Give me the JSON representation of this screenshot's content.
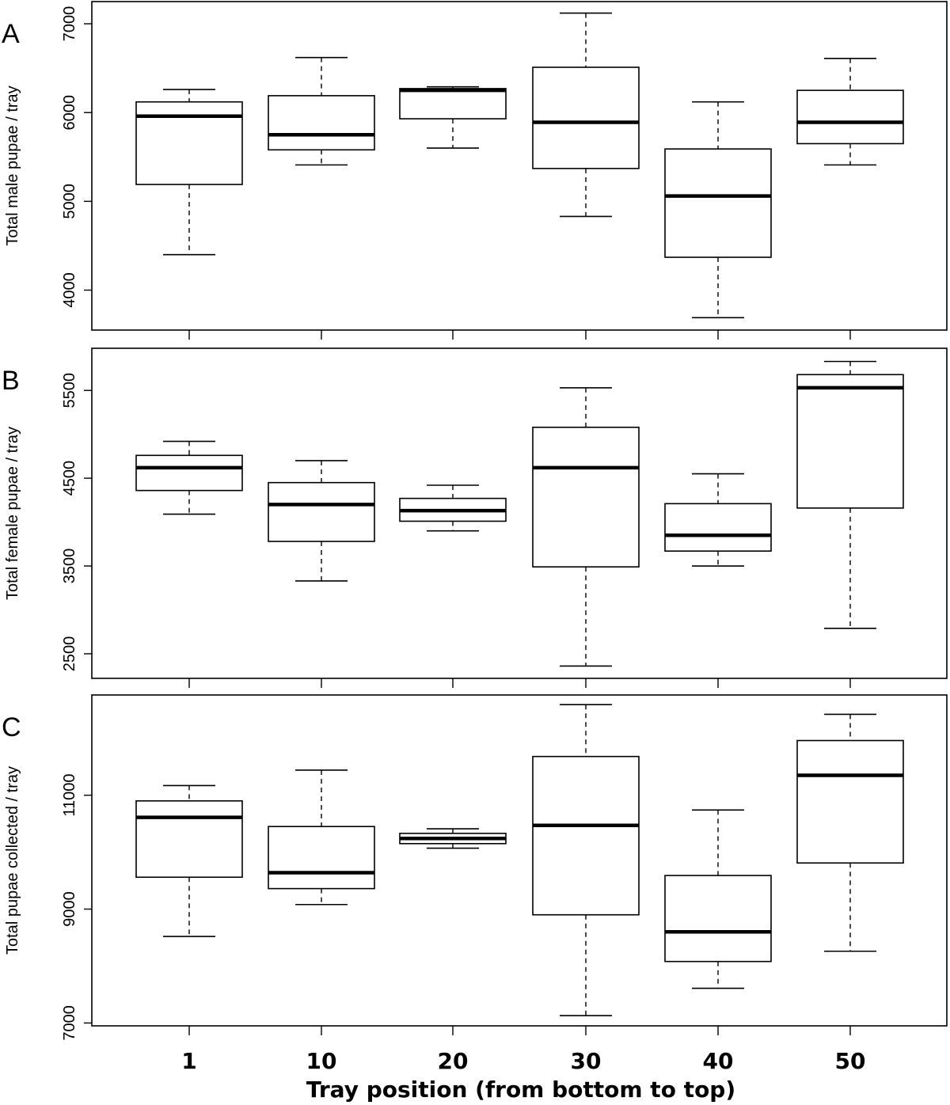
{
  "chart_data": [
    {
      "type": "boxplot",
      "panel": "A",
      "ylabel": "Total male pupae / tray",
      "ylim": [
        3550,
        7250
      ],
      "yticks": [
        4000,
        5000,
        6000,
        7000
      ],
      "categories": [
        "1",
        "10",
        "20",
        "30",
        "40",
        "50"
      ],
      "boxes": [
        {
          "min": 4400,
          "q1": 5190,
          "median": 5960,
          "q3": 6120,
          "max": 6260
        },
        {
          "min": 5410,
          "q1": 5580,
          "median": 5750,
          "q3": 6190,
          "max": 6620
        },
        {
          "min": 5600,
          "q1": 5930,
          "median": 6250,
          "q3": 6270,
          "max": 6290
        },
        {
          "min": 4830,
          "q1": 5370,
          "median": 5890,
          "q3": 6510,
          "max": 7120
        },
        {
          "min": 3690,
          "q1": 4370,
          "median": 5060,
          "q3": 5590,
          "max": 6120
        },
        {
          "min": 5410,
          "q1": 5650,
          "median": 5890,
          "q3": 6250,
          "max": 6610
        }
      ]
    },
    {
      "type": "boxplot",
      "panel": "B",
      "ylabel": "Total female pupae / tray",
      "ylim": [
        2220,
        5980
      ],
      "yticks": [
        2500,
        3500,
        4500,
        5500
      ],
      "categories": [
        "1",
        "10",
        "20",
        "30",
        "40",
        "50"
      ],
      "boxes": [
        {
          "min": 4090,
          "q1": 4360,
          "median": 4620,
          "q3": 4760,
          "max": 4920
        },
        {
          "min": 3330,
          "q1": 3780,
          "median": 4200,
          "q3": 4450,
          "max": 4700
        },
        {
          "min": 3900,
          "q1": 4010,
          "median": 4130,
          "q3": 4270,
          "max": 4420
        },
        {
          "min": 2360,
          "q1": 3490,
          "median": 4620,
          "q3": 5080,
          "max": 5530
        },
        {
          "min": 3500,
          "q1": 3670,
          "median": 3850,
          "q3": 4210,
          "max": 4550
        },
        {
          "min": 2790,
          "q1": 4160,
          "median": 5530,
          "q3": 5680,
          "max": 5830
        }
      ]
    },
    {
      "type": "boxplot",
      "panel": "C",
      "ylabel": "Total pupae collected / tray",
      "ylim": [
        6950,
        12760
      ],
      "yticks": [
        7000,
        9000,
        11000
      ],
      "categories": [
        "1",
        "10",
        "20",
        "30",
        "40",
        "50"
      ],
      "boxes": [
        {
          "min": 8520,
          "q1": 9560,
          "median": 10610,
          "q3": 10900,
          "max": 11170
        },
        {
          "min": 9080,
          "q1": 9360,
          "median": 9640,
          "q3": 10450,
          "max": 11440
        },
        {
          "min": 10070,
          "q1": 10150,
          "median": 10240,
          "q3": 10330,
          "max": 10410
        },
        {
          "min": 7130,
          "q1": 8900,
          "median": 10470,
          "q3": 11680,
          "max": 12590
        },
        {
          "min": 7610,
          "q1": 8080,
          "median": 8600,
          "q3": 9590,
          "max": 10740
        },
        {
          "min": 8260,
          "q1": 9810,
          "median": 11350,
          "q3": 11960,
          "max": 12420
        }
      ]
    }
  ],
  "xlabel": "Tray position (from bottom to top)"
}
